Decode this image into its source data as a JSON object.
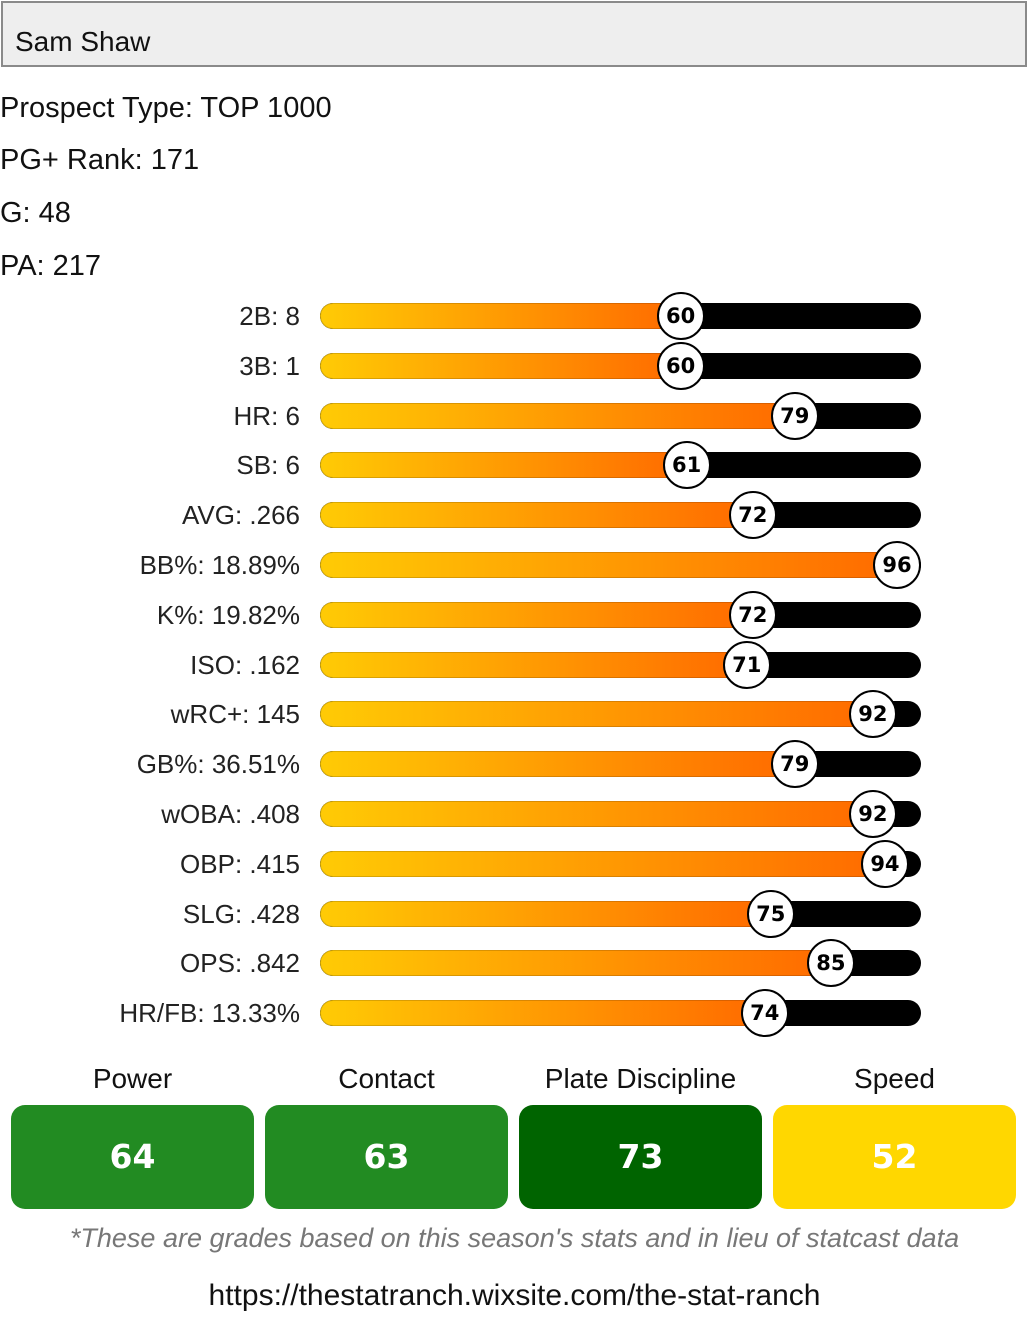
{
  "player": {
    "name": "Sam Shaw"
  },
  "info": {
    "prospect_type": "Prospect Type: TOP 1000",
    "pg_rank": "PG+ Rank: 171",
    "games": "G: 48",
    "plate_appearances": "PA: 217"
  },
  "colors": {
    "bar_gradient_start": "#ffcb05",
    "bar_gradient_end": "#ff6a00",
    "bar_track": "#000000",
    "grade_green": "#228b22",
    "grade_dark_green": "#006400",
    "grade_yellow": "#ffd700"
  },
  "stats": [
    {
      "label": "2B: 8",
      "percentile": 60
    },
    {
      "label": "3B: 1",
      "percentile": 60
    },
    {
      "label": "HR: 6",
      "percentile": 79
    },
    {
      "label": "SB: 6",
      "percentile": 61
    },
    {
      "label": "AVG: .266",
      "percentile": 72
    },
    {
      "label": "BB%: 18.89%",
      "percentile": 96
    },
    {
      "label": "K%: 19.82%",
      "percentile": 72
    },
    {
      "label": "ISO: .162",
      "percentile": 71
    },
    {
      "label": "wRC+: 145",
      "percentile": 92
    },
    {
      "label": "GB%: 36.51%",
      "percentile": 79
    },
    {
      "label": "wOBA: .408",
      "percentile": 92
    },
    {
      "label": "OBP: .415",
      "percentile": 94
    },
    {
      "label": "SLG: .428",
      "percentile": 75
    },
    {
      "label": "OPS: .842",
      "percentile": 85
    },
    {
      "label": "HR/FB: 13.33%",
      "percentile": 74
    }
  ],
  "grades": [
    {
      "label": "Power",
      "value": "64",
      "color": "#228b22",
      "text_color": "#ffffff"
    },
    {
      "label": "Contact",
      "value": "63",
      "color": "#228b22",
      "text_color": "#ffffff"
    },
    {
      "label": "Plate Discipline",
      "value": "73",
      "color": "#006400",
      "text_color": "#ffffff"
    },
    {
      "label": "Speed",
      "value": "52",
      "color": "#ffd700",
      "text_color": "#ffffff"
    }
  ],
  "footnote": "*These are grades based on this season's stats and in lieu of statcast data",
  "url": "https://thestatranch.wixsite.com/the-stat-ranch"
}
